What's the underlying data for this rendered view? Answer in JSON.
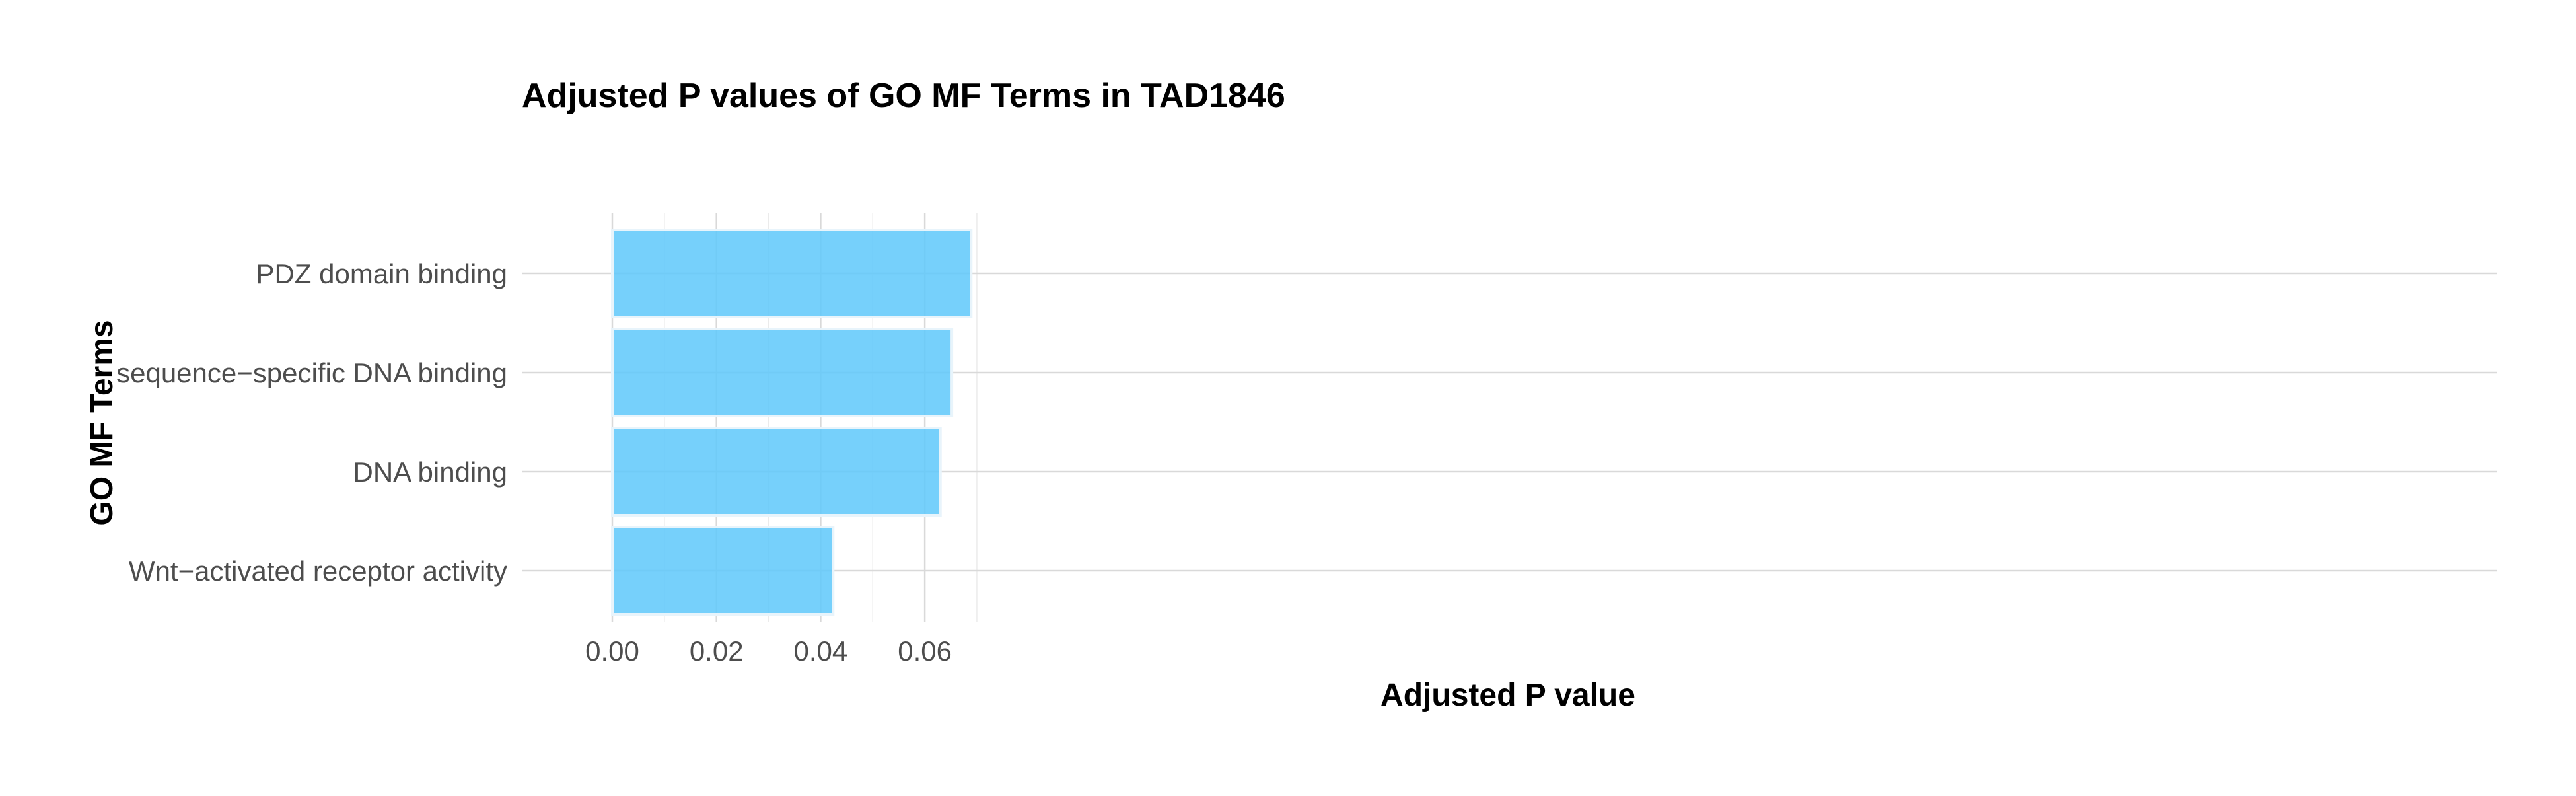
{
  "chart_data": {
    "type": "bar",
    "orientation": "horizontal",
    "title": "Adjusted P values of GO MF Terms in TAD1846",
    "xlabel": "Adjusted P value",
    "ylabel": "GO MF Terms",
    "categories": [
      "PDZ domain binding",
      "sequence−specific DNA binding",
      "DNA binding",
      "Wnt−activated receptor activity"
    ],
    "values": [
      0.0689,
      0.0652,
      0.063,
      0.0424
    ],
    "xlim": [
      0,
      0.0725
    ],
    "xticks": [
      0,
      0.02,
      0.04,
      0.06
    ],
    "xtick_labels": [
      "0.00",
      "0.02",
      "0.04",
      "0.06"
    ],
    "grid": true,
    "legend": "none",
    "colors": {
      "bar_fill": "#5ec8fa",
      "bar_opacity": 0.85,
      "grid_major": "#d9d9d9",
      "grid_minor": "#ebebeb"
    }
  }
}
